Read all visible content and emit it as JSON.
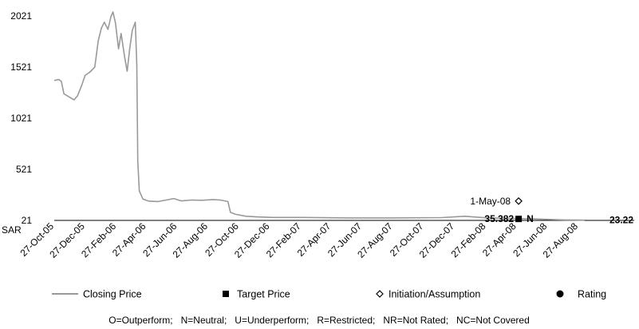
{
  "chart_data": {
    "type": "line",
    "y_axis_unit": "SAR",
    "yticks": [
      21,
      521,
      1021,
      1521,
      2021
    ],
    "ylim": [
      21,
      2100
    ],
    "xticks": [
      "27-Oct-05",
      "27-Dec-05",
      "27-Feb-06",
      "27-Apr-06",
      "27-Jun-06",
      "27-Aug-06",
      "27-Oct-06",
      "27-Dec-06",
      "27-Feb-07",
      "27-Apr-07",
      "27-Jun-07",
      "27-Aug-07",
      "27-Oct-07",
      "27-Dec-07",
      "27-Feb-08",
      "27-Apr-08",
      "27-Jun-08",
      "27-Aug-08"
    ],
    "series": [
      {
        "name": "Closing Price",
        "color": "#999999",
        "points": [
          [
            "2005-10-27",
            1390
          ],
          [
            "2005-11-05",
            1400
          ],
          [
            "2005-11-10",
            1380
          ],
          [
            "2005-11-15",
            1260
          ],
          [
            "2005-11-25",
            1230
          ],
          [
            "2005-12-05",
            1200
          ],
          [
            "2005-12-12",
            1240
          ],
          [
            "2005-12-20",
            1340
          ],
          [
            "2005-12-27",
            1440
          ],
          [
            "2006-01-05",
            1470
          ],
          [
            "2006-01-15",
            1520
          ],
          [
            "2006-01-22",
            1780
          ],
          [
            "2006-01-28",
            1900
          ],
          [
            "2006-02-03",
            1960
          ],
          [
            "2006-02-10",
            1890
          ],
          [
            "2006-02-16",
            2015
          ],
          [
            "2006-02-20",
            2060
          ],
          [
            "2006-02-25",
            1950
          ],
          [
            "2006-03-03",
            1700
          ],
          [
            "2006-03-08",
            1850
          ],
          [
            "2006-03-15",
            1620
          ],
          [
            "2006-03-20",
            1480
          ],
          [
            "2006-03-25",
            1700
          ],
          [
            "2006-03-30",
            1880
          ],
          [
            "2006-04-05",
            1960
          ],
          [
            "2006-04-08",
            1540
          ],
          [
            "2006-04-10",
            600
          ],
          [
            "2006-04-13",
            310
          ],
          [
            "2006-04-20",
            230
          ],
          [
            "2006-05-01",
            210
          ],
          [
            "2006-05-20",
            205
          ],
          [
            "2006-06-10",
            225
          ],
          [
            "2006-06-20",
            235
          ],
          [
            "2006-07-05",
            212
          ],
          [
            "2006-07-25",
            220
          ],
          [
            "2006-08-15",
            218
          ],
          [
            "2006-09-05",
            225
          ],
          [
            "2006-09-20",
            220
          ],
          [
            "2006-10-05",
            205
          ],
          [
            "2006-10-10",
            100
          ],
          [
            "2006-10-20",
            80
          ],
          [
            "2006-11-10",
            62
          ],
          [
            "2006-12-01",
            55
          ],
          [
            "2007-01-01",
            50
          ],
          [
            "2007-03-01",
            50
          ],
          [
            "2007-06-01",
            45
          ],
          [
            "2007-09-01",
            45
          ],
          [
            "2007-12-01",
            48
          ],
          [
            "2008-01-15",
            62
          ],
          [
            "2008-02-01",
            55
          ],
          [
            "2008-03-01",
            45
          ],
          [
            "2008-05-01",
            38
          ],
          [
            "2008-06-01",
            35
          ],
          [
            "2008-07-01",
            30
          ],
          [
            "2008-08-01",
            26
          ],
          [
            "2008-09-08",
            23.22
          ]
        ]
      }
    ],
    "annotations": [
      {
        "date": "2008-05-01",
        "value": 210,
        "marker": "diamond",
        "label": "1-May-08"
      },
      {
        "date": "2008-05-01",
        "value": 35.382,
        "marker": "square",
        "label": "35.382"
      },
      {
        "date": "2008-05-01",
        "value": 35.382,
        "marker": "circle",
        "label": "N"
      },
      {
        "date": "2008-09-08",
        "value": 23.22,
        "marker": "none",
        "label": "23.22"
      }
    ],
    "legend": [
      {
        "label": "Closing Price",
        "marker": "line"
      },
      {
        "label": "Target Price",
        "marker": "square"
      },
      {
        "label": "Initiation/Assumption",
        "marker": "diamond"
      },
      {
        "label": "Rating",
        "marker": "circle"
      }
    ],
    "footnote": "O=Outperform;   N=Neutral;   U=Underperform;   R=Restricted;   NR=Not Rated;   NC=Not Covered"
  }
}
